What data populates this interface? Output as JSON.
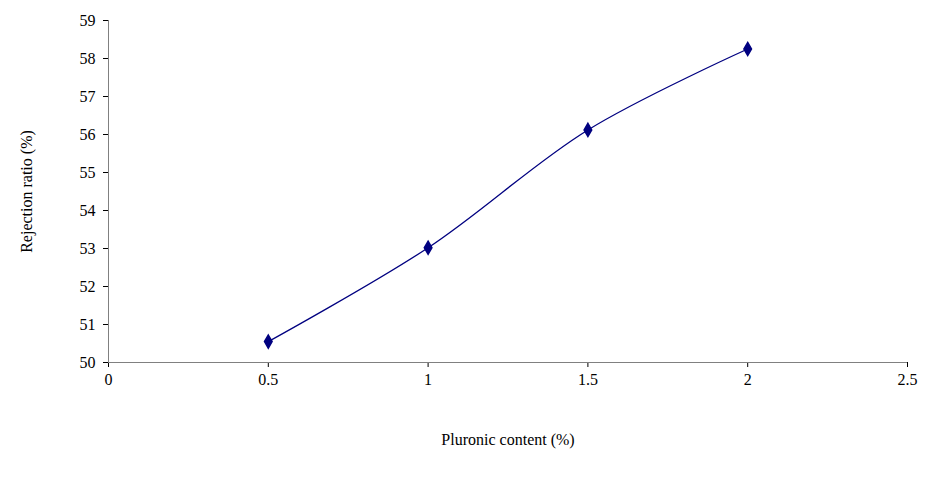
{
  "chart_data": {
    "type": "line",
    "x_label": "Pluronic content (%)",
    "y_label": "Rejection ratio (%)",
    "x": [
      0.5,
      1,
      1.5,
      2
    ],
    "values": [
      50.55,
      53.02,
      56.12,
      58.25
    ],
    "color": "#000080",
    "marker": "diamond",
    "line_style": "smooth",
    "xlim": [
      0,
      2.5
    ],
    "xticks": [
      0,
      0.5,
      1,
      1.5,
      2,
      2.5
    ],
    "ylim": [
      50,
      59
    ],
    "yticks": [
      50,
      51,
      52,
      53,
      54,
      55,
      56,
      57,
      58,
      59
    ],
    "grid": false
  }
}
